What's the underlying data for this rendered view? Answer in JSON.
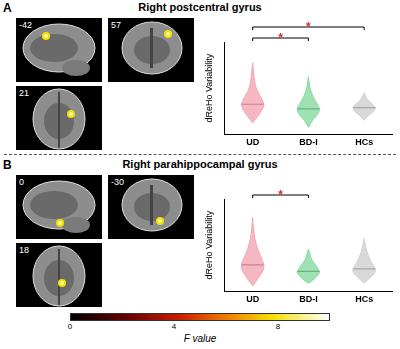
{
  "chart_data": [
    {
      "type": "violin",
      "panel": "A",
      "title": "Right postcentral gyrus",
      "slices": [
        -42,
        57,
        21
      ],
      "y_label": "dReHo Variability",
      "categories": [
        "UD",
        "BD-I",
        "HCs"
      ],
      "colors": [
        "#f4a6b0",
        "#86d9a0",
        "#cfcfcf"
      ],
      "ylim": [
        0.05,
        0.45
      ],
      "yticks": [],
      "tick_labels": "x",
      "grid": false,
      "violins": [
        {
          "y": [
            0.1,
            0.13,
            0.16,
            0.18,
            0.2,
            0.23,
            0.26,
            0.3,
            0.36
          ],
          "width": [
            0,
            0.2,
            0.36,
            0.4,
            0.34,
            0.2,
            0.1,
            0.05,
            0
          ],
          "median": 0.18
        },
        {
          "y": [
            0.08,
            0.11,
            0.14,
            0.16,
            0.18,
            0.21,
            0.25,
            0.3
          ],
          "width": [
            0,
            0.15,
            0.35,
            0.4,
            0.32,
            0.18,
            0.06,
            0
          ],
          "median": 0.16
        },
        {
          "y": [
            0.11,
            0.13,
            0.15,
            0.165,
            0.18,
            0.2,
            0.23
          ],
          "width": [
            0,
            0.15,
            0.35,
            0.4,
            0.3,
            0.12,
            0
          ],
          "median": 0.165
        }
      ],
      "significance": [
        {
          "pair": [
            "UD",
            "BD-I"
          ],
          "label": "*"
        },
        {
          "pair": [
            "UD",
            "HCs"
          ],
          "label": "*"
        }
      ]
    },
    {
      "type": "violin",
      "panel": "B",
      "title": "Right parahippocampal gyrus",
      "slices": [
        0,
        -30,
        18
      ],
      "y_label": "dReHo Variability",
      "categories": [
        "UD",
        "BD-I",
        "HCs"
      ],
      "colors": [
        "#f4a6b0",
        "#86d9a0",
        "#cfcfcf"
      ],
      "ylim": [
        0.05,
        0.4
      ],
      "yticks": [],
      "tick_labels": "x",
      "grid": false,
      "violins": [
        {
          "y": [
            0.07,
            0.1,
            0.13,
            0.15,
            0.18,
            0.21,
            0.25,
            0.29,
            0.33
          ],
          "width": [
            0,
            0.2,
            0.38,
            0.4,
            0.3,
            0.18,
            0.08,
            0.03,
            0
          ],
          "median": 0.15
        },
        {
          "y": [
            0.08,
            0.1,
            0.12,
            0.125,
            0.14,
            0.17,
            0.21
          ],
          "width": [
            0,
            0.25,
            0.4,
            0.4,
            0.32,
            0.12,
            0
          ],
          "median": 0.125
        },
        {
          "y": [
            0.08,
            0.1,
            0.12,
            0.135,
            0.16,
            0.2,
            0.25
          ],
          "width": [
            0,
            0.2,
            0.38,
            0.4,
            0.26,
            0.1,
            0
          ],
          "median": 0.135
        }
      ],
      "significance": [
        {
          "pair": [
            "UD",
            "BD-I"
          ],
          "label": "*"
        }
      ]
    }
  ],
  "colorbar": {
    "label": "F value",
    "range": [
      0,
      10
    ],
    "ticks": [
      0,
      4,
      8
    ]
  }
}
